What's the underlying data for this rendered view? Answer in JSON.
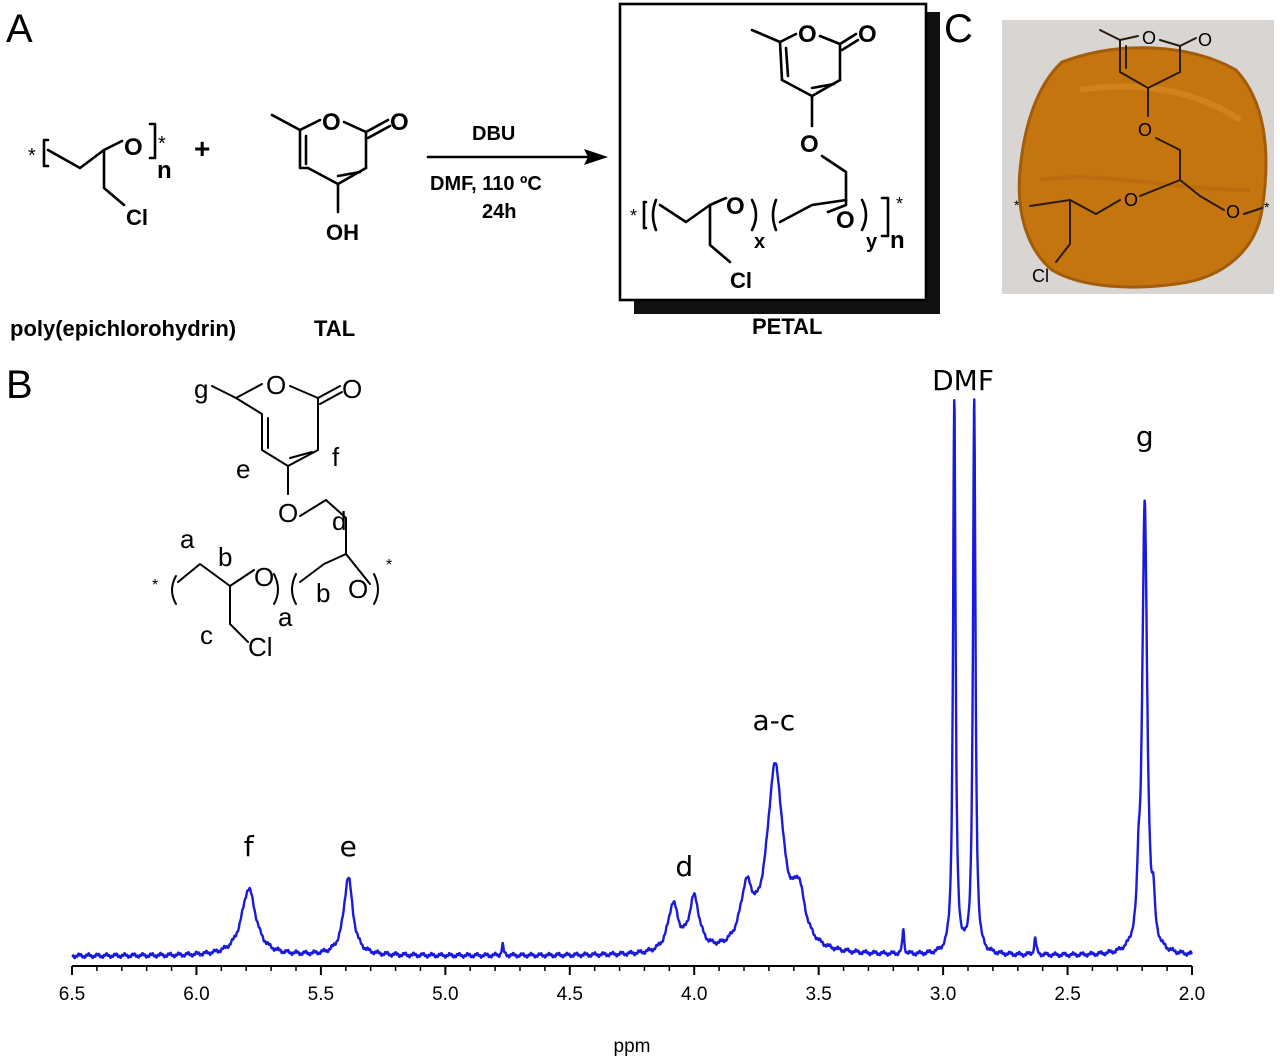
{
  "panels": {
    "a": "A",
    "b": "B",
    "c": "C"
  },
  "scheme": {
    "reactant1_label": "poly(epichlorohydrin)",
    "reactant2_label": "TAL",
    "product_label": "PETAL",
    "plus": "+",
    "reagent": "DBU",
    "conditions": "DMF, 110 ºC",
    "time": "24h",
    "atoms": {
      "O": "O",
      "Cl": "Cl",
      "OH": "OH",
      "star": "*",
      "n": "n",
      "x": "x",
      "y": "y"
    }
  },
  "structure_b": {
    "labels": {
      "a": "a",
      "b": "b",
      "c": "c",
      "d": "d",
      "e": "e",
      "f": "f",
      "g": "g",
      "O": "O",
      "Cl": "Cl",
      "star": "*"
    }
  },
  "photo": {
    "description_colors": {
      "film": "#c8750f",
      "background": "#d7d4d2"
    }
  },
  "chart_data": {
    "type": "line",
    "xlabel": "ppm",
    "xlim": [
      6.5,
      2.0
    ],
    "x_reversed": true,
    "x_ticks": [
      "6.5",
      "6.0",
      "5.5",
      "5.0",
      "4.5",
      "4.0",
      "3.5",
      "3.0",
      "2.5",
      "2.0"
    ],
    "line_color": "#1a1adc",
    "peak_labels": [
      {
        "label": "f",
        "ppm": 5.79
      },
      {
        "label": "e",
        "ppm": 5.39
      },
      {
        "label": "d",
        "ppm": 4.04
      },
      {
        "label": "a-c",
        "ppm": 3.68
      },
      {
        "label": "DMF",
        "ppm": 2.92
      },
      {
        "label": "g",
        "ppm": 2.19
      }
    ],
    "peaks": [
      {
        "ppm": 5.79,
        "height": 0.12,
        "width": 0.035
      },
      {
        "ppm": 5.39,
        "height": 0.14,
        "width": 0.022
      },
      {
        "ppm": 4.085,
        "height": 0.085,
        "width": 0.025
      },
      {
        "ppm": 4.0,
        "height": 0.095,
        "width": 0.025
      },
      {
        "ppm": 3.79,
        "height": 0.1,
        "width": 0.03
      },
      {
        "ppm": 3.675,
        "height": 0.33,
        "width": 0.04
      },
      {
        "ppm": 3.58,
        "height": 0.09,
        "width": 0.03
      },
      {
        "ppm": 2.955,
        "height": 1.0,
        "width": 0.006
      },
      {
        "ppm": 2.875,
        "height": 1.0,
        "width": 0.006
      },
      {
        "ppm": 2.19,
        "height": 0.81,
        "width": 0.012
      },
      {
        "ppm": 2.215,
        "height": 0.08,
        "width": 0.006
      },
      {
        "ppm": 2.155,
        "height": 0.06,
        "width": 0.006
      },
      {
        "ppm": 3.16,
        "height": 0.045,
        "width": 0.004
      },
      {
        "ppm": 4.77,
        "height": 0.02,
        "width": 0.004
      },
      {
        "ppm": 2.63,
        "height": 0.03,
        "width": 0.005
      }
    ]
  }
}
